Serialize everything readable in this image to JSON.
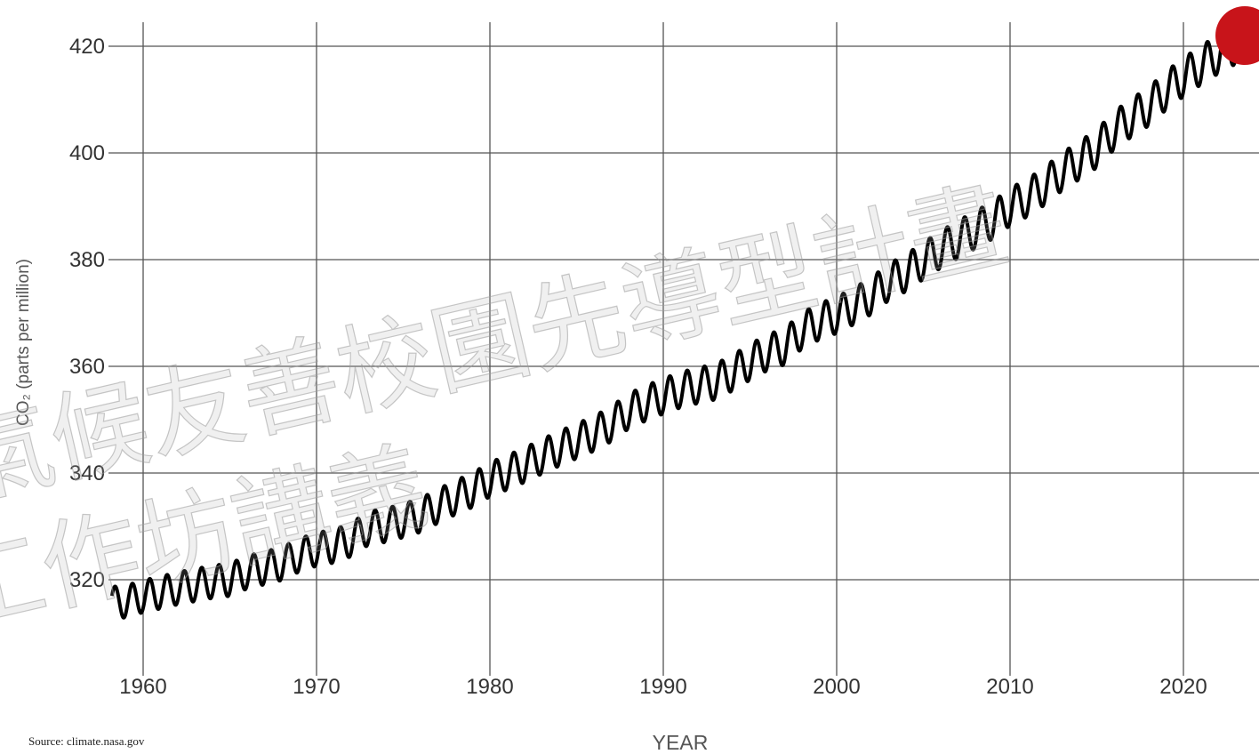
{
  "chart_data": {
    "type": "line",
    "xlabel": "YEAR",
    "ylabel": "CO₂ (parts per million)",
    "xlim": [
      1958,
      2023.8
    ],
    "ylim": [
      305,
      423
    ],
    "x_ticks": [
      1960,
      1970,
      1980,
      1990,
      2000,
      2010,
      2020
    ],
    "y_ticks": [
      320,
      340,
      360,
      380,
      400,
      420
    ],
    "grid": true,
    "series": [
      {
        "color": "#000000",
        "x": [
          1958.2,
          1959.0,
          1960.0,
          1961.0,
          1962.0,
          1963.0,
          1964.0,
          1965.0,
          1966.0,
          1967.0,
          1968.0,
          1969.0,
          1970.0,
          1971.0,
          1972.0,
          1973.0,
          1974.0,
          1975.0,
          1976.0,
          1977.0,
          1978.0,
          1979.0,
          1980.0,
          1981.0,
          1982.0,
          1983.0,
          1984.0,
          1985.0,
          1986.0,
          1987.0,
          1988.0,
          1989.0,
          1990.0,
          1991.0,
          1992.0,
          1993.0,
          1994.0,
          1995.0,
          1996.0,
          1997.0,
          1998.0,
          1999.0,
          2000.0,
          2001.0,
          2002.0,
          2003.0,
          2004.0,
          2005.0,
          2006.0,
          2007.0,
          2008.0,
          2009.0,
          2010.0,
          2011.0,
          2012.0,
          2013.0,
          2014.0,
          2015.0,
          2016.0,
          2017.0,
          2018.0,
          2019.0,
          2020.0,
          2021.0,
          2022.0,
          2023.0,
          2023.6
        ],
        "y": [
          315.7,
          315.9,
          316.9,
          317.6,
          318.4,
          319.0,
          319.6,
          320.0,
          321.4,
          322.2,
          323.0,
          324.6,
          325.7,
          326.3,
          327.5,
          329.7,
          330.2,
          331.1,
          332.1,
          333.8,
          335.4,
          336.8,
          338.8,
          340.1,
          341.5,
          343.1,
          344.6,
          346.0,
          347.4,
          349.2,
          351.6,
          353.1,
          354.4,
          355.6,
          356.4,
          357.1,
          358.8,
          360.8,
          362.6,
          363.7,
          366.7,
          368.4,
          369.6,
          371.3,
          373.2,
          375.8,
          377.5,
          379.8,
          381.9,
          383.8,
          385.6,
          387.4,
          389.9,
          391.6,
          393.8,
          396.5,
          398.6,
          400.8,
          404.2,
          406.6,
          408.7,
          411.7,
          414.2,
          416.4,
          418.5,
          420.3,
          420.8
        ]
      }
    ],
    "highlight_marker_color": "#c8141a"
  },
  "source_text": "Source: climate.nasa.gov",
  "watermark_lines": [
    "氣候友善校園先導型計畫",
    "工作坊講義"
  ]
}
